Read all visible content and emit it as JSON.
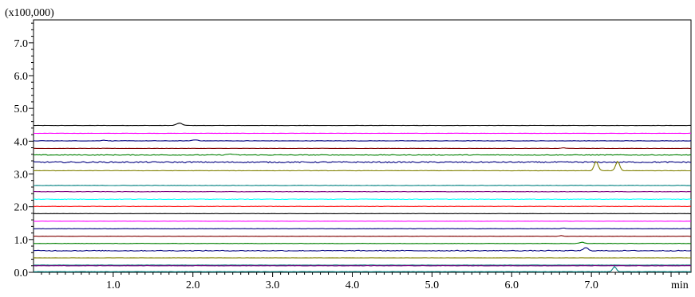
{
  "chart_data": {
    "type": "line",
    "title": "",
    "xlabel": "",
    "ylabel": "",
    "y_multiplier_label": "(x100,000)",
    "x_unit_label": "min",
    "xlim": [
      0.0,
      8.25
    ],
    "ylim": [
      0.0,
      7.7
    ],
    "x_ticks": [
      "1.0",
      "2.0",
      "3.0",
      "4.0",
      "5.0",
      "6.0",
      "7.0"
    ],
    "y_ticks": [
      "0.0",
      "1.0",
      "2.0",
      "3.0",
      "4.0",
      "5.0",
      "6.0",
      "7.0"
    ],
    "grid": false,
    "series": [
      {
        "color": "#000000",
        "baseline": 4.48,
        "noise": 0.004,
        "peaks": [
          {
            "x": 1.83,
            "h": 0.07,
            "w": 0.05
          }
        ]
      },
      {
        "color": "#ff00ff",
        "baseline": 4.24,
        "noise": 0.004,
        "peaks": []
      },
      {
        "color": "#000080",
        "baseline": 4.01,
        "noise": 0.006,
        "peaks": [
          {
            "x": 2.03,
            "h": 0.03,
            "w": 0.05
          },
          {
            "x": 0.88,
            "h": 0.02,
            "w": 0.04
          }
        ]
      },
      {
        "color": "#800000",
        "baseline": 3.78,
        "noise": 0.004,
        "peaks": [
          {
            "x": 6.65,
            "h": 0.02,
            "w": 0.03
          }
        ]
      },
      {
        "color": "#008000",
        "baseline": 3.58,
        "noise": 0.01,
        "peaks": [
          {
            "x": 2.47,
            "h": 0.03,
            "w": 0.05
          }
        ]
      },
      {
        "color": "#000080",
        "baseline": 3.36,
        "noise": 0.018,
        "peaks": []
      },
      {
        "color": "#808000",
        "baseline": 3.1,
        "noise": 0.005,
        "peaks": [
          {
            "x": 7.06,
            "h": 0.28,
            "w": 0.035
          },
          {
            "x": 7.33,
            "h": 0.28,
            "w": 0.035
          }
        ]
      },
      {
        "color": "#008080",
        "baseline": 2.65,
        "noise": 0.006,
        "peaks": []
      },
      {
        "color": "#800080",
        "baseline": 2.46,
        "noise": 0.005,
        "peaks": []
      },
      {
        "color": "#00ffff",
        "baseline": 2.23,
        "noise": 0.008,
        "peaks": []
      },
      {
        "color": "#ff0000",
        "baseline": 2.01,
        "noise": 0.005,
        "peaks": []
      },
      {
        "color": "#000000",
        "baseline": 1.79,
        "noise": 0.003,
        "peaks": []
      },
      {
        "color": "#ff00ff",
        "baseline": 1.56,
        "noise": 0.003,
        "peaks": []
      },
      {
        "color": "#000080",
        "baseline": 1.33,
        "noise": 0.004,
        "peaks": [
          {
            "x": 6.65,
            "h": 0.02,
            "w": 0.03
          }
        ]
      },
      {
        "color": "#800000",
        "baseline": 1.1,
        "noise": 0.003,
        "peaks": [
          {
            "x": 6.62,
            "h": 0.02,
            "w": 0.03
          }
        ]
      },
      {
        "color": "#008000",
        "baseline": 0.88,
        "noise": 0.004,
        "peaks": [
          {
            "x": 6.88,
            "h": 0.04,
            "w": 0.04
          }
        ]
      },
      {
        "color": "#000080",
        "baseline": 0.66,
        "noise": 0.012,
        "peaks": [
          {
            "x": 6.93,
            "h": 0.09,
            "w": 0.04
          }
        ]
      },
      {
        "color": "#808000",
        "baseline": 0.44,
        "noise": 0.003,
        "peaks": []
      },
      {
        "color": "#008080",
        "baseline": 0.22,
        "noise": 0.004,
        "peaks": []
      },
      {
        "color": "#800080",
        "baseline": 0.2,
        "noise": 0.004,
        "peaks": []
      },
      {
        "color": "#008080",
        "baseline": 0.02,
        "noise": 0.003,
        "peaks": [
          {
            "x": 7.29,
            "h": 0.16,
            "w": 0.03
          }
        ]
      }
    ]
  }
}
